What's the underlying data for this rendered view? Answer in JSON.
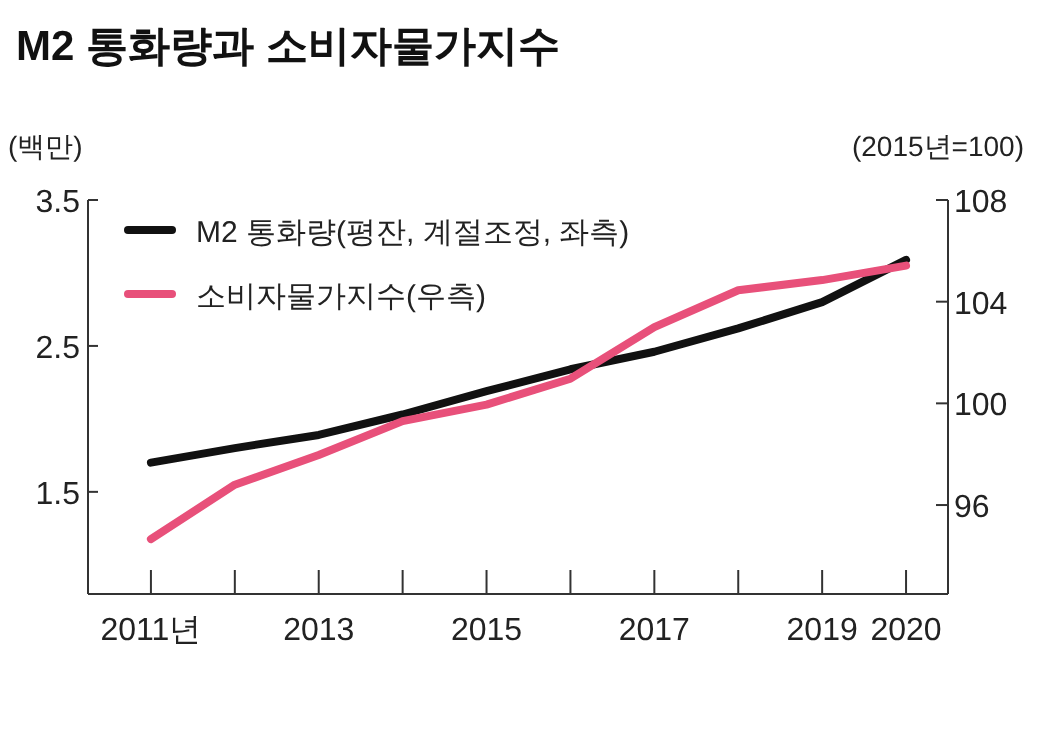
{
  "chart_data": {
    "type": "line",
    "title": "M2 통화량과 소비자물가지수",
    "ylabel": "(백만)",
    "y2label": "(2015년=100)",
    "x": [
      2011,
      2012,
      2013,
      2014,
      2015,
      2016,
      2017,
      2018,
      2019,
      2020
    ],
    "xlim": [
      2010.25,
      2020.5
    ],
    "xticks": [
      {
        "value": 2011,
        "label": "2011년"
      },
      {
        "value": 2012,
        "label": null
      },
      2013,
      {
        "value": 2014,
        "label": null
      },
      2015,
      {
        "value": 2016,
        "label": null
      },
      2017,
      {
        "value": 2018,
        "label": null
      },
      2019,
      2020
    ],
    "ylim": [
      0.8,
      3.5
    ],
    "yticks": [
      1.5,
      2.5,
      3.5
    ],
    "y2lim": [
      92.5,
      108
    ],
    "y2ticks": [
      96,
      100,
      104,
      108
    ],
    "series": [
      {
        "name": "M2 통화량(평잔, 계절조정, 좌측)",
        "color": "#111111",
        "values": [
          1.7,
          1.8,
          1.89,
          2.03,
          2.19,
          2.34,
          2.46,
          2.62,
          2.8,
          3.09
        ]
      },
      {
        "name": "소비자물가지수(우측)",
        "color": "#e8507a",
        "axis": "y2",
        "values": [
          94.66,
          96.8,
          97.97,
          99.3,
          99.95,
          100.97,
          103.0,
          104.45,
          104.85,
          105.42
        ]
      }
    ],
    "legend": "top left",
    "grid": false
  }
}
